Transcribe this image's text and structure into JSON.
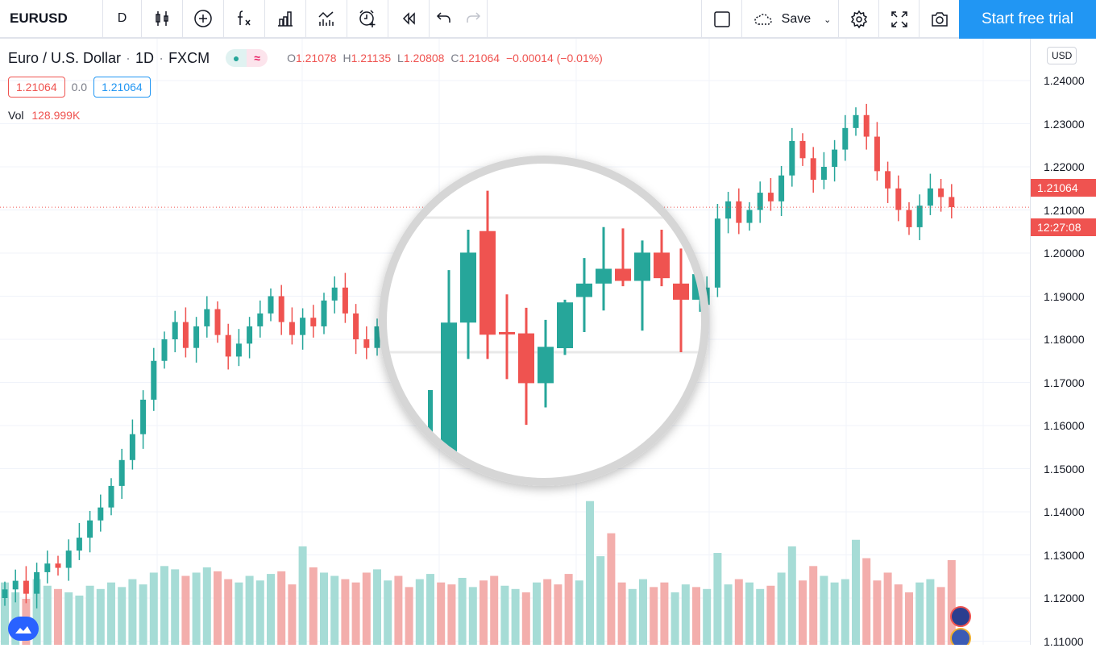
{
  "toolbar": {
    "symbol": "EURUSD",
    "interval": "D",
    "icons": [
      "candles-icon",
      "add-compare-icon",
      "indicators-fx-icon",
      "templates-bars-icon",
      "financials-icon",
      "alert-clock-icon",
      "replay-icon",
      "undo-icon",
      "redo-icon"
    ],
    "save_label": "Save",
    "trial_label": "Start free trial",
    "right_icons": [
      "layout-square-icon",
      "cloud-save-icon",
      "gear-icon",
      "fullscreen-icon",
      "camera-icon"
    ]
  },
  "legend": {
    "title": "Euro / U.S. Dollar",
    "interval": "1D",
    "exchange": "FXCM",
    "sep": "·",
    "approx": "≈",
    "o_label": "O",
    "o": "1.21078",
    "h_label": "H",
    "h": "1.21135",
    "l_label": "L",
    "l": "1.20808",
    "c_label": "C",
    "c": "1.21064",
    "change": "−0.00014 (−0.01%)",
    "bid": "1.21064",
    "spread": "0.0",
    "ask": "1.21064",
    "vol_label": "Vol",
    "vol": "128.999K"
  },
  "axis": {
    "currency": "USD",
    "ticks": [
      "1.24000",
      "1.23000",
      "1.22000",
      "1.21000",
      "1.20000",
      "1.19000",
      "1.18000",
      "1.17000",
      "1.16000",
      "1.15000",
      "1.14000",
      "1.13000",
      "1.12000",
      "1.11000"
    ],
    "last_price": "1.21064",
    "countdown": "12:27:08"
  },
  "colors": {
    "up": "#26a69a",
    "down": "#ef5350",
    "accent": "#2196f3"
  },
  "chart_data": {
    "type": "candlestick",
    "ylim": [
      1.11,
      1.24
    ],
    "grid": true,
    "close": [
      1.122,
      1.124,
      1.121,
      1.126,
      1.128,
      1.127,
      1.131,
      1.134,
      1.138,
      1.141,
      1.146,
      1.152,
      1.158,
      1.166,
      1.175,
      1.18,
      1.184,
      1.178,
      1.183,
      1.187,
      1.181,
      1.176,
      1.179,
      1.183,
      1.186,
      1.19,
      1.184,
      1.181,
      1.185,
      1.183,
      1.189,
      1.192,
      1.186,
      1.18,
      1.178,
      1.183,
      1.185,
      1.181,
      1.177,
      1.18,
      1.183,
      1.179,
      1.176,
      1.18,
      1.184,
      1.182,
      1.178,
      1.181,
      1.185,
      1.183,
      1.186,
      1.182,
      1.179,
      1.176,
      1.18,
      1.184,
      1.187,
      1.185,
      1.182,
      1.186,
      1.189,
      1.187,
      1.184,
      1.187,
      1.19,
      1.188,
      1.192,
      1.208,
      1.212,
      1.207,
      1.21,
      1.214,
      1.212,
      1.218,
      1.226,
      1.222,
      1.217,
      1.22,
      1.224,
      1.229,
      1.232,
      1.227,
      1.219,
      1.215,
      1.21,
      1.206,
      1.211,
      1.215,
      1.213,
      1.21064
    ],
    "volume_k": [
      95,
      80,
      70,
      100,
      90,
      85,
      80,
      75,
      90,
      85,
      95,
      88,
      100,
      92,
      110,
      120,
      115,
      105,
      110,
      118,
      112,
      100,
      95,
      105,
      98,
      108,
      112,
      92,
      150,
      118,
      110,
      105,
      100,
      95,
      110,
      115,
      98,
      105,
      88,
      100,
      108,
      95,
      92,
      102,
      88,
      98,
      105,
      90,
      85,
      80,
      95,
      100,
      92,
      108,
      98,
      219,
      135,
      170,
      95,
      85,
      100,
      88,
      95,
      80,
      92,
      88,
      85,
      140,
      92,
      100,
      95,
      85,
      90,
      110,
      150,
      98,
      120,
      105,
      95,
      100,
      160,
      132,
      98,
      110,
      92,
      80,
      95,
      100,
      88,
      128.999
    ],
    "magnified_ohlc": [
      [
        1.1726,
        1.1861,
        1.1726,
        1.1822
      ],
      [
        1.1822,
        1.1891,
        1.1795,
        1.1874
      ],
      [
        1.189,
        1.192,
        1.1795,
        1.1813
      ],
      [
        1.1815,
        1.1843,
        1.178,
        1.1814
      ],
      [
        1.1814,
        1.1833,
        1.1746,
        1.1777
      ],
      [
        1.1777,
        1.1824,
        1.1759,
        1.1804
      ],
      [
        1.1803,
        1.1839,
        1.1798,
        1.1837
      ],
      [
        1.1841,
        1.187,
        1.1815,
        1.1851
      ],
      [
        1.1851,
        1.1893,
        1.1831,
        1.1862
      ],
      [
        1.1862,
        1.1892,
        1.1849,
        1.1853
      ],
      [
        1.1853,
        1.1883,
        1.1816,
        1.1874
      ],
      [
        1.1874,
        1.1891,
        1.1849,
        1.1855
      ],
      [
        1.1851,
        1.1877,
        1.18,
        1.1839
      ],
      [
        1.1839,
        1.187,
        1.183,
        1.1858
      ]
    ]
  }
}
